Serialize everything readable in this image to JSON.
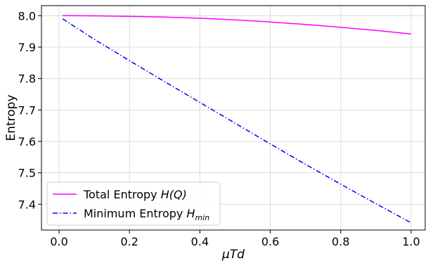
{
  "chart_data": {
    "type": "line",
    "xlabel": "μTd",
    "ylabel": "Entropy",
    "xlim": [
      -0.05,
      1.04
    ],
    "ylim": [
      7.318,
      8.032
    ],
    "xticks": [
      "0.0",
      "0.2",
      "0.4",
      "0.6",
      "0.8",
      "1.0"
    ],
    "yticks": [
      "7.4",
      "7.5",
      "7.6",
      "7.7",
      "7.8",
      "7.9",
      "8.0"
    ],
    "grid": true,
    "legend_position": "lower-left",
    "series": [
      {
        "name": "Total Entropy H(Q)",
        "legend_main": "Total Entropy ",
        "legend_math": "H(Q)",
        "legend_sub": "",
        "color": "#ff00ff",
        "style": "solid",
        "x": [
          0.01,
          0.1,
          0.2,
          0.3,
          0.4,
          0.5,
          0.6,
          0.7,
          0.8,
          0.9,
          1.0
        ],
        "y": [
          8.0,
          7.9995,
          7.998,
          7.9955,
          7.992,
          7.9865,
          7.98,
          7.972,
          7.963,
          7.953,
          7.942
        ]
      },
      {
        "name": "Minimum Entropy H_min",
        "legend_main": "Minimum Entropy ",
        "legend_math": "H",
        "legend_sub": "min",
        "color": "#0000ff",
        "style": "dashdot",
        "x": [
          0.01,
          0.1,
          0.2,
          0.3,
          0.4,
          0.5,
          0.6,
          0.7,
          0.8,
          0.9,
          1.0
        ],
        "y": [
          7.99,
          7.925,
          7.857,
          7.79,
          7.724,
          7.658,
          7.592,
          7.527,
          7.464,
          7.402,
          7.341
        ]
      }
    ]
  }
}
